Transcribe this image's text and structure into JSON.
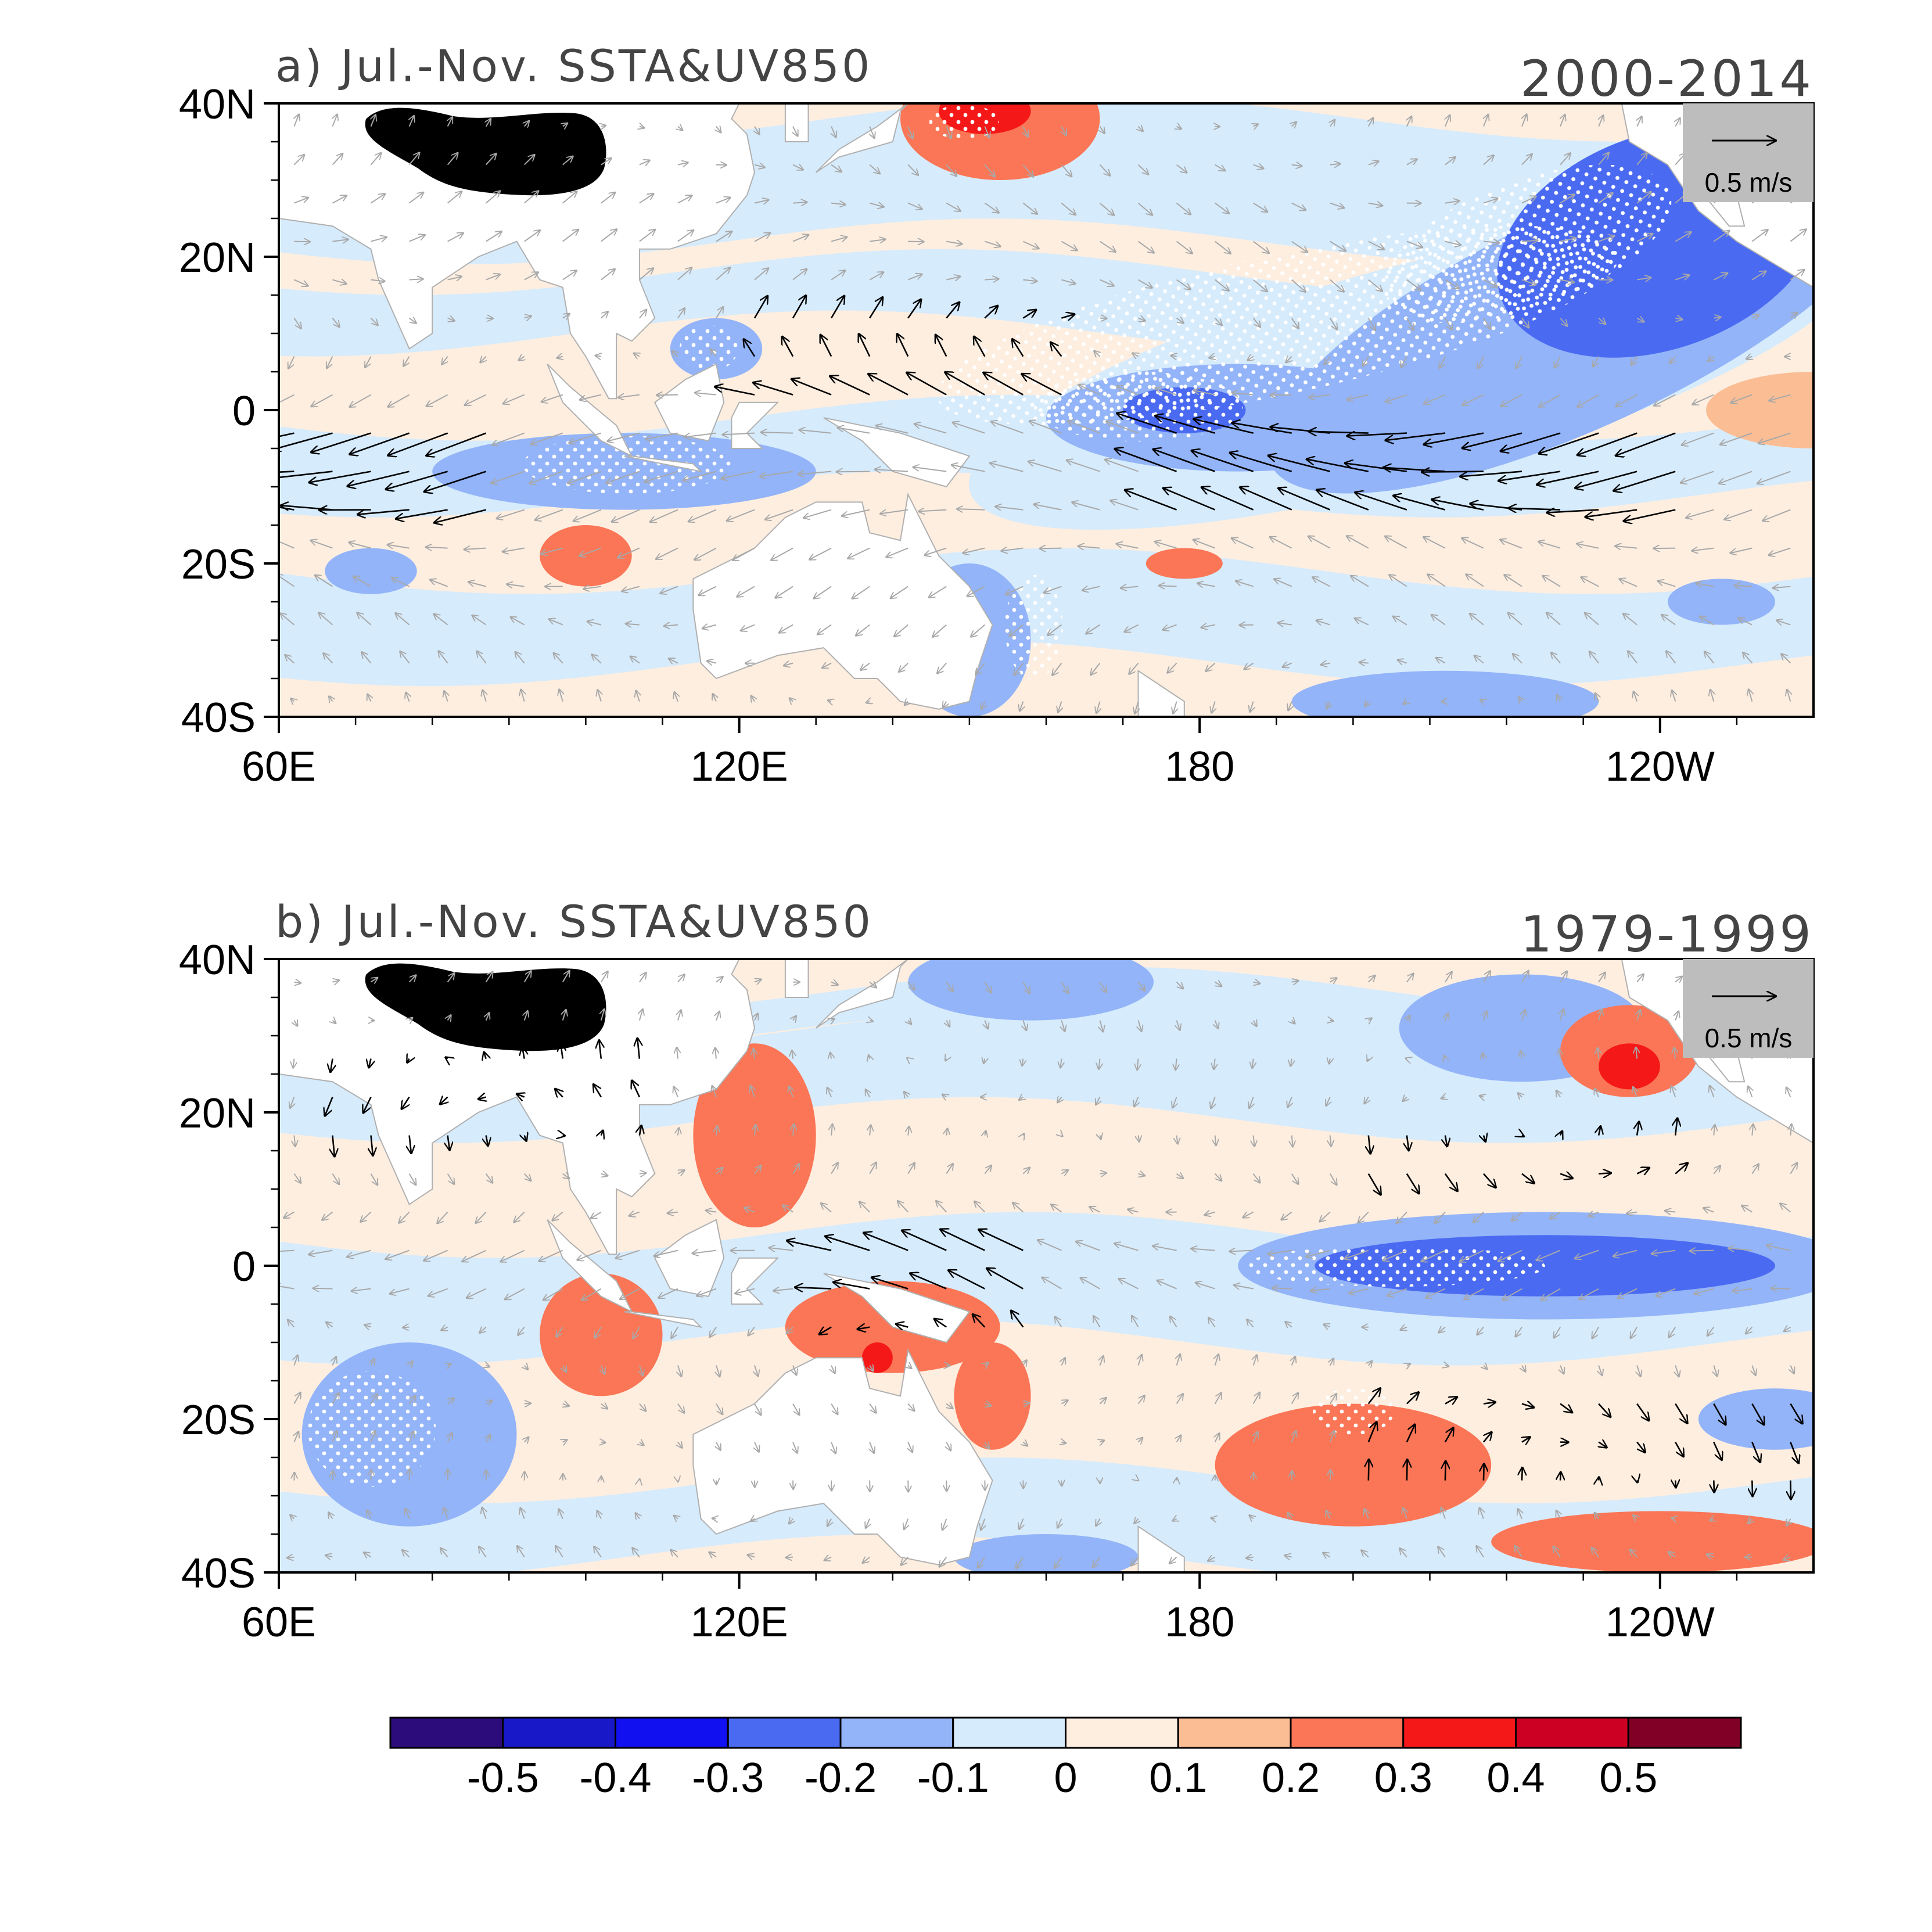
{
  "panels": [
    {
      "id": "a",
      "title": "a) Jul.-Nov. SSTA&UV850",
      "period": "2000-2014",
      "ref_vector": {
        "value": 0.5,
        "label": "0.5 m/s"
      },
      "features": {
        "cold": [
          {
            "lon": 240,
            "lat": 22,
            "rx": 22,
            "ry": 14,
            "level": -0.3,
            "rot": -20
          },
          {
            "lon": 208,
            "lat": 5,
            "rx": 60,
            "ry": 14,
            "level": -0.1,
            "rot": -15
          },
          {
            "lon": 185,
            "lat": -1,
            "rx": 25,
            "ry": 7,
            "level": -0.2,
            "rot": 0
          },
          {
            "lon": 178,
            "lat": 0,
            "rx": 8,
            "ry": 3,
            "level": -0.3,
            "rot": 0
          },
          {
            "lon": 230,
            "lat": 12,
            "rx": 45,
            "ry": 14,
            "level": -0.2,
            "rot": -25
          },
          {
            "lon": 105,
            "lat": -8,
            "rx": 25,
            "ry": 5,
            "level": -0.2,
            "rot": 0
          },
          {
            "lon": 150,
            "lat": -30,
            "rx": 8,
            "ry": 10,
            "level": -0.2,
            "rot": 0
          },
          {
            "lon": 212,
            "lat": -38,
            "rx": 20,
            "ry": 4,
            "level": -0.2,
            "rot": 0
          },
          {
            "lon": 72,
            "lat": -21,
            "rx": 6,
            "ry": 3,
            "level": -0.2,
            "rot": 0
          },
          {
            "lon": 248,
            "lat": -25,
            "rx": 7,
            "ry": 3,
            "level": -0.2,
            "rot": 0
          },
          {
            "lon": 117,
            "lat": 8,
            "rx": 6,
            "ry": 4,
            "level": -0.2,
            "rot": 0
          }
        ],
        "warm": [
          {
            "lon": 154,
            "lat": 38,
            "rx": 13,
            "ry": 8,
            "level": 0.2,
            "rot": 0
          },
          {
            "lon": 152,
            "lat": 39,
            "rx": 6,
            "ry": 3,
            "level": 0.3,
            "rot": 0
          },
          {
            "lon": 100,
            "lat": -19,
            "rx": 6,
            "ry": 4,
            "level": 0.2,
            "rot": 0
          },
          {
            "lon": 260,
            "lat": 0,
            "rx": 14,
            "ry": 5,
            "level": 0.1,
            "rot": 0
          },
          {
            "lon": 178,
            "lat": -20,
            "rx": 5,
            "ry": 2,
            "level": 0.2,
            "rot": 0
          }
        ]
      }
    },
    {
      "id": "b",
      "title": "b) Jul.-Nov. SSTA&UV850",
      "period": "1979-1999",
      "ref_vector": {
        "value": 0.5,
        "label": "0.5 m/s"
      },
      "features": {
        "cold": [
          {
            "lon": 225,
            "lat": 0,
            "rx": 40,
            "ry": 7,
            "level": -0.2,
            "rot": 0
          },
          {
            "lon": 225,
            "lat": 0,
            "rx": 30,
            "ry": 4,
            "level": -0.3,
            "rot": 0
          },
          {
            "lon": 158,
            "lat": 37,
            "rx": 16,
            "ry": 5,
            "level": -0.2,
            "rot": 0
          },
          {
            "lon": 222,
            "lat": 31,
            "rx": 16,
            "ry": 7,
            "level": -0.2,
            "rot": 0
          },
          {
            "lon": 77,
            "lat": -22,
            "rx": 14,
            "ry": 12,
            "level": -0.2,
            "rot": 0
          },
          {
            "lon": 160,
            "lat": -38,
            "rx": 12,
            "ry": 3,
            "level": -0.2,
            "rot": 0
          },
          {
            "lon": 255,
            "lat": -20,
            "rx": 10,
            "ry": 4,
            "level": -0.2,
            "rot": 0
          }
        ],
        "warm": [
          {
            "lon": 122,
            "lat": 17,
            "rx": 8,
            "ry": 12,
            "level": 0.2,
            "rot": 0
          },
          {
            "lon": 102,
            "lat": -9,
            "rx": 8,
            "ry": 8,
            "level": 0.2,
            "rot": 0
          },
          {
            "lon": 140,
            "lat": -8,
            "rx": 14,
            "ry": 6,
            "level": 0.2,
            "rot": 0
          },
          {
            "lon": 138,
            "lat": -12,
            "rx": 2,
            "ry": 2,
            "level": 0.3,
            "rot": 0
          },
          {
            "lon": 153,
            "lat": -17,
            "rx": 5,
            "ry": 7,
            "level": 0.2,
            "rot": 0
          },
          {
            "lon": 200,
            "lat": -26,
            "rx": 18,
            "ry": 8,
            "level": 0.2,
            "rot": 0
          },
          {
            "lon": 236,
            "lat": 28,
            "rx": 9,
            "ry": 6,
            "level": 0.2,
            "rot": 0
          },
          {
            "lon": 236,
            "lat": 26,
            "rx": 4,
            "ry": 3,
            "level": 0.3,
            "rot": 0
          },
          {
            "lon": 240,
            "lat": -36,
            "rx": 22,
            "ry": 4,
            "level": 0.2,
            "rot": 0
          }
        ]
      }
    }
  ],
  "axes": {
    "lon_range": [
      60,
      260
    ],
    "lat_range": [
      -40,
      40
    ],
    "x_ticks": [
      {
        "lon": 60,
        "label": "60E"
      },
      {
        "lon": 120,
        "label": "120E"
      },
      {
        "lon": 180,
        "label": "180"
      },
      {
        "lon": 240,
        "label": "120W"
      }
    ],
    "y_ticks": [
      {
        "lat": 40,
        "label": "40N"
      },
      {
        "lat": 20,
        "label": "20N"
      },
      {
        "lat": 0,
        "label": "0"
      },
      {
        "lat": -20,
        "label": "20S"
      },
      {
        "lat": -40,
        "label": "40S"
      }
    ]
  },
  "colorbar": {
    "colors": [
      "#2c0b7a",
      "#1818c8",
      "#1010f0",
      "#4a6af2",
      "#93b4f8",
      "#d6ebfc",
      "#fdeee0",
      "#fbbd94",
      "#fb7656",
      "#f51818",
      "#cc0022",
      "#800026"
    ],
    "labels": [
      "-0.5",
      "-0.4",
      "-0.3",
      "-0.2",
      "-0.1",
      "0",
      "0.1",
      "0.2",
      "0.3",
      "0.4",
      "0.5"
    ],
    "levels": [
      -0.5,
      -0.4,
      -0.3,
      -0.2,
      -0.1,
      0,
      0.1,
      0.2,
      0.3,
      0.4,
      0.5
    ]
  },
  "colors": {
    "land": "#ffffff",
    "coast": "#b0b0b0",
    "plateau_mask": "#000000",
    "wind_significant": "#000000",
    "wind_insignificant": "#a8a8a8",
    "ref_box": "#bdbdbd",
    "stipple": "#ffffff"
  }
}
